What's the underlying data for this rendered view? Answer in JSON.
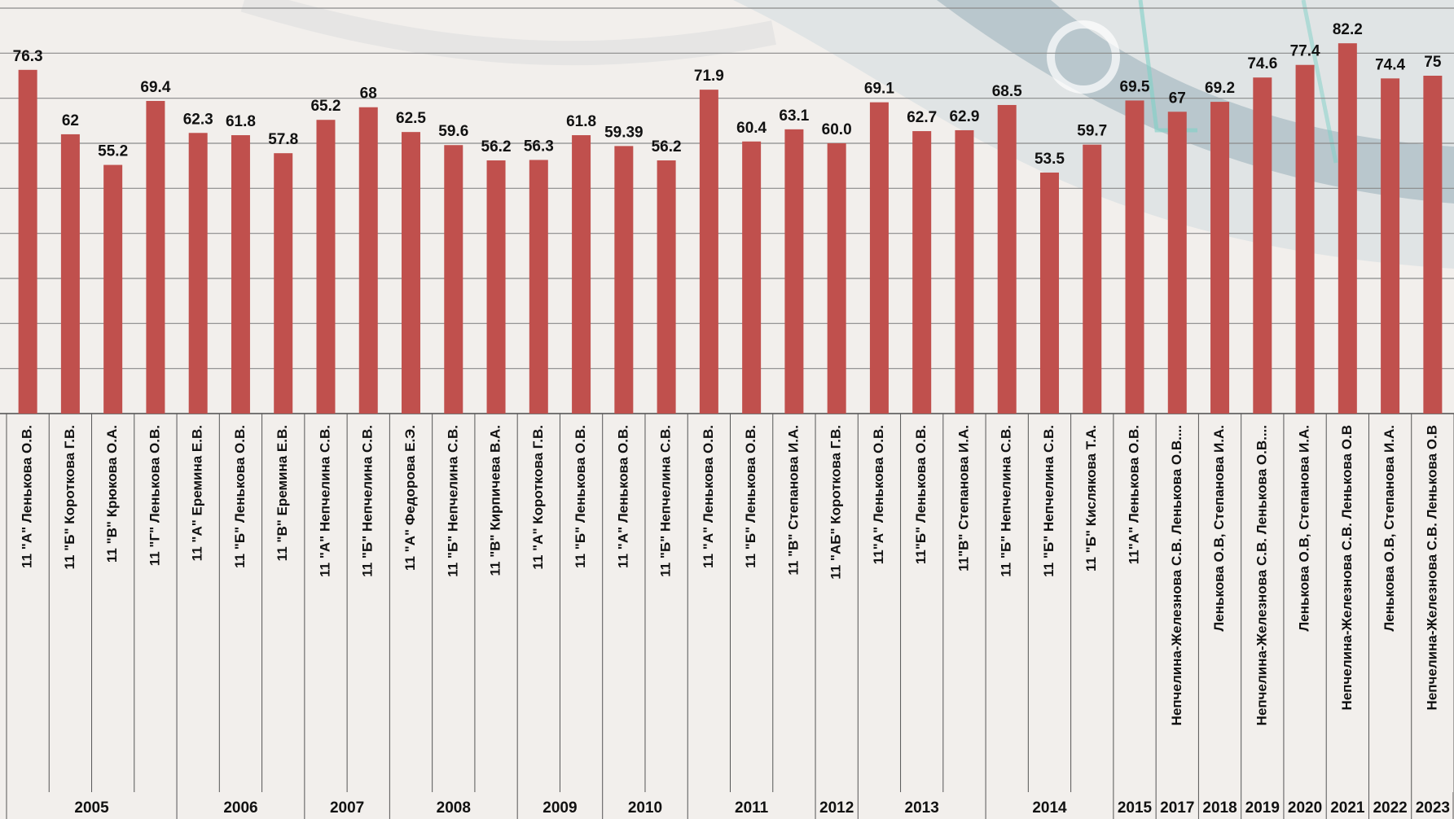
{
  "chart_data": {
    "type": "bar",
    "color": "#c0504d",
    "ylim": [
      0,
      90
    ],
    "yticks": [
      0,
      10,
      20,
      30,
      40,
      50,
      60,
      70,
      80,
      90
    ],
    "grid": true,
    "categories": [
      "11 \"А\" Ленькова О.В.",
      "11 \"Б\" Короткова Г.В.",
      "11 \"В\" Крюкова О.А.",
      "11 \"Г\" Ленькова О.В.",
      "11 \"А\" Еремина Е.В.",
      "11 \"Б\" Ленькова О.В.",
      "11 \"В\" Еремина Е.В.",
      "11 \"А\" Непчелина С.В.",
      "11 \"Б\" Непчелина С.В.",
      "11 \"А\" Федорова Е.Э.",
      "11 \"Б\" Непчелина С.В.",
      "11 \"В\" Кирпичева В.А.",
      "11 \"А\" Короткова Г.В.",
      "11 \"Б\" Ленькова О.В.",
      "11 \"А\" Ленькова О.В.",
      "11 \"Б\" Непчелина С.В.",
      "11 \"А\" Ленькова О.В.",
      "11 \"Б\" Ленькова О.В.",
      "11 \"В\" Степанова И.А.",
      "11 \"АБ\" Короткова Г.В.",
      "11\"А\" Ленькова О.В.",
      "11\"Б\" Ленькова О.В.",
      "11\"В\" Степанова И.А.",
      "11 \"Б\" Непчелина С.В.",
      "11 \"Б\" Непчелина С.В.",
      "11 \"Б\" Кислякова Т.А.",
      "11\"А\" Ленькова О.В.",
      "Непчелина-Железнова С.В. Ленькова О.В....",
      "Ленькова О.В, Степанова И.А.",
      "Непчелина-Железнова С.В. Ленькова О.В....",
      "Ленькова О.В, Степанова И.А.",
      "Непчелина-Железнова С.В. Ленькова О.В",
      "Ленькова О.В, Степанова И.А.",
      "Непчелина-Железнова С.В. Ленькова О.В"
    ],
    "values": [
      76.3,
      62,
      55.2,
      69.4,
      62.3,
      61.8,
      57.8,
      65.2,
      68,
      62.5,
      59.6,
      56.2,
      56.3,
      61.8,
      59.39,
      56.2,
      71.9,
      60.4,
      63.1,
      60,
      69.1,
      62.7,
      62.9,
      68.5,
      53.5,
      59.7,
      69.5,
      67,
      69.2,
      74.6,
      77.4,
      82.2,
      74.4,
      75
    ],
    "value_labels": [
      "76.3",
      "62",
      "55.2",
      "69.4",
      "62.3",
      "61.8",
      "57.8",
      "65.2",
      "68",
      "62.5",
      "59.6",
      "56.2",
      "56.3",
      "61.8",
      "59.39",
      "56.2",
      "71.9",
      "60.4",
      "63.1",
      "60.0",
      "69.1",
      "62.7",
      "62.9",
      "68.5",
      "53.5",
      "59.7",
      "69.5",
      "67",
      "69.2",
      "74.6",
      "77.4",
      "82.2",
      "74.4",
      "75"
    ],
    "groups": [
      {
        "name": "2005",
        "size": 4
      },
      {
        "name": "2006",
        "size": 3
      },
      {
        "name": "2007",
        "size": 2
      },
      {
        "name": "2008",
        "size": 3
      },
      {
        "name": "2009",
        "size": 2
      },
      {
        "name": "2010",
        "size": 2
      },
      {
        "name": "2011",
        "size": 3
      },
      {
        "name": "2012",
        "size": 1
      },
      {
        "name": "2013",
        "size": 3
      },
      {
        "name": "2014",
        "size": 3
      },
      {
        "name": "2015",
        "size": 1
      },
      {
        "name": "2017",
        "size": 1
      },
      {
        "name": "2018",
        "size": 1
      },
      {
        "name": "2019",
        "size": 1
      },
      {
        "name": "2020",
        "size": 1
      },
      {
        "name": "2021",
        "size": 1
      },
      {
        "name": "2022",
        "size": 1
      },
      {
        "name": "2023",
        "size": 1
      }
    ]
  }
}
